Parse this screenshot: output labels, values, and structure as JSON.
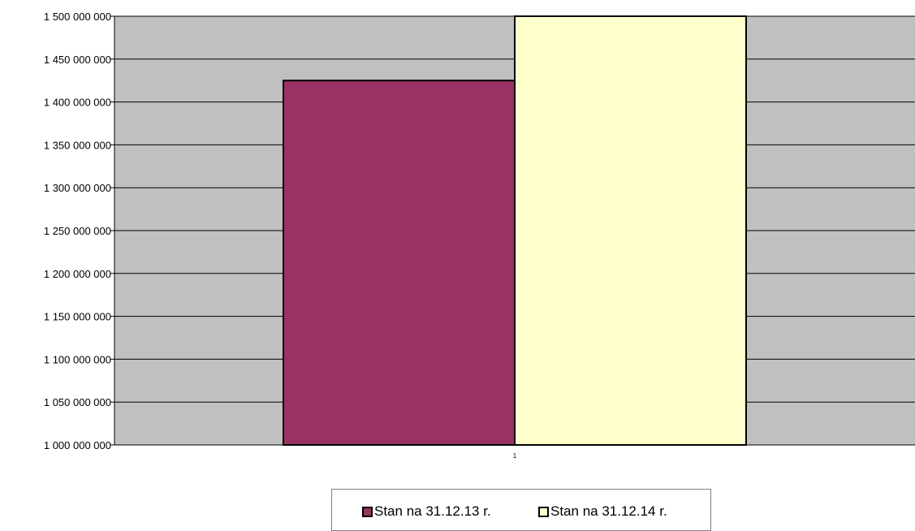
{
  "chart_data": {
    "type": "bar",
    "categories": [
      "1"
    ],
    "series": [
      {
        "name": "Stan na 31.12.13 r.",
        "values": [
          1425000000
        ],
        "color": "#993366"
      },
      {
        "name": "Stan na 31.12.14 r.",
        "values": [
          1500000000
        ],
        "color": "#FFFFCC"
      }
    ],
    "ylim": [
      1000000000,
      1500000000
    ],
    "yticks": [
      1000000000,
      1050000000,
      1100000000,
      1150000000,
      1200000000,
      1250000000,
      1300000000,
      1350000000,
      1400000000,
      1450000000,
      1500000000
    ],
    "ytick_labels": [
      "1 000 000 000",
      "1 050 000 000",
      "1 100 000 000",
      "1 150 000 000",
      "1 200 000 000",
      "1 250 000 000",
      "1 300 000 000",
      "1 350 000 000",
      "1 400 000 000",
      "1 450 000 000",
      "1 500 000 000"
    ],
    "xtick_labels": [
      "1"
    ],
    "grid": true,
    "plot_background": "#C0C0C0",
    "legend": {
      "position": "bottom",
      "entries": [
        "Stan na 31.12.13 r.",
        "Stan na 31.12.14 r."
      ]
    }
  }
}
